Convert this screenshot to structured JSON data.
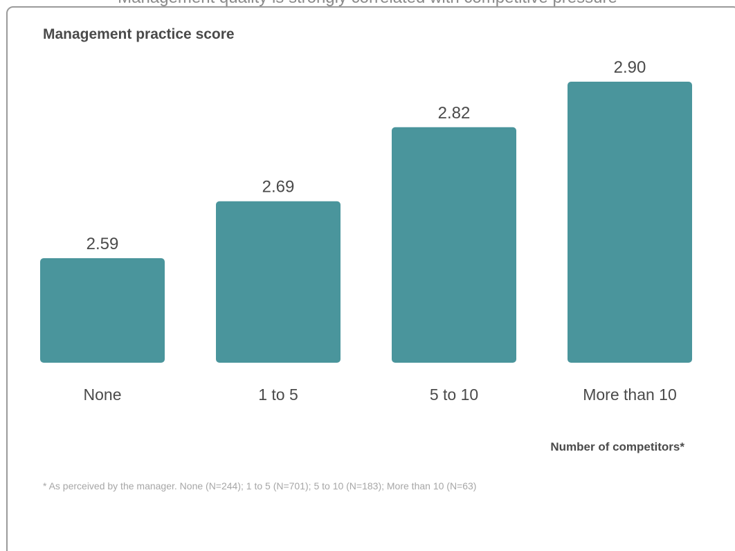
{
  "header": {
    "title": "Management quality is strongly correlated with competitive pressure"
  },
  "chart_data": {
    "type": "bar",
    "title": "Management practice score",
    "xlabel": "Number of competitors*",
    "ylabel": "",
    "categories": [
      "None",
      "1 to 5",
      "5 to 10",
      "More than 10"
    ],
    "values": [
      2.59,
      2.69,
      2.82,
      2.9
    ],
    "value_labels": [
      "2.59",
      "2.69",
      "2.82",
      "2.90"
    ],
    "grid": false,
    "bar_color": "#4a959c"
  },
  "footnote": "* As perceived by the manager. None (N=244); 1 to 5 (N=701); 5 to 10 (N=183); More than 10 (N=63)"
}
